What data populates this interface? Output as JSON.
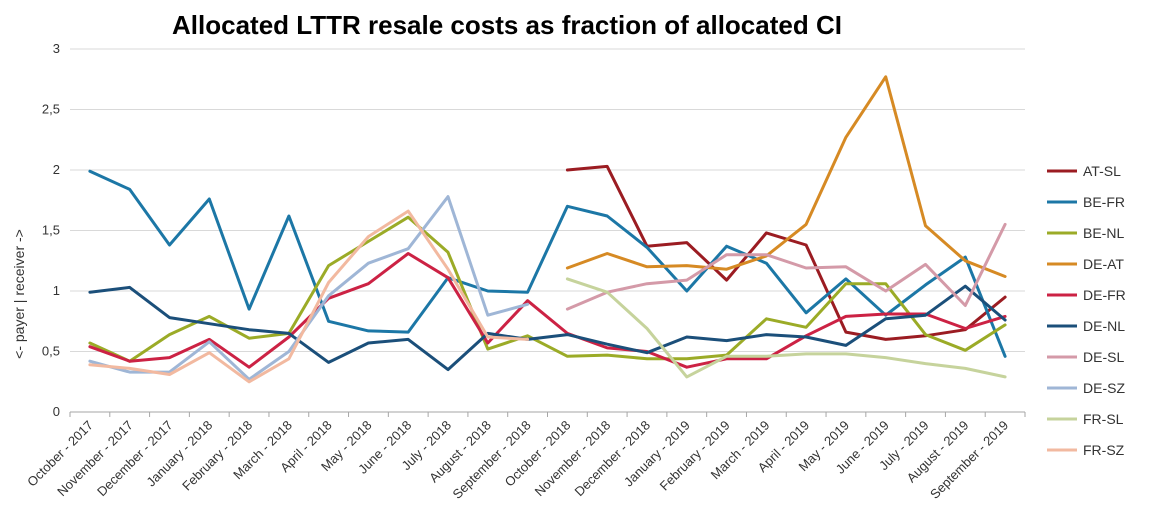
{
  "chart_data": {
    "type": "line",
    "title": "Allocated LTTR resale costs as fraction of allocated CI",
    "xlabel": "",
    "ylabel": "<- payer  |  receiver ->",
    "ylim": [
      0,
      3
    ],
    "yticks": [
      "0",
      "0,5",
      "1",
      "1,5",
      "2",
      "2,5",
      "3"
    ],
    "grid": true,
    "legend_position": "right",
    "categories": [
      "October - 2017",
      "November - 2017",
      "December - 2017",
      "January - 2018",
      "February - 2018",
      "March - 2018",
      "April - 2018",
      "May - 2018",
      "June - 2018",
      "July - 2018",
      "August - 2018",
      "September - 2018",
      "October - 2018",
      "November - 2018",
      "December - 2018",
      "January - 2019",
      "February - 2019",
      "March - 2019",
      "April - 2019",
      "May - 2019",
      "June - 2019",
      "July - 2019",
      "August - 2019",
      "September - 2019"
    ],
    "series": [
      {
        "name": "AT-SL",
        "color": "#9b1c22",
        "values": [
          null,
          null,
          null,
          null,
          null,
          null,
          null,
          null,
          null,
          null,
          null,
          null,
          2.0,
          2.03,
          1.37,
          1.4,
          1.09,
          1.48,
          1.38,
          0.66,
          0.6,
          0.63,
          0.68,
          0.95
        ]
      },
      {
        "name": "BE-FR",
        "color": "#1c77a6",
        "values": [
          1.99,
          1.84,
          1.38,
          1.76,
          0.85,
          1.62,
          0.75,
          0.67,
          0.66,
          1.11,
          1.0,
          0.99,
          1.7,
          1.62,
          1.36,
          1.0,
          1.37,
          1.23,
          0.82,
          1.1,
          0.8,
          1.05,
          1.28,
          0.46
        ]
      },
      {
        "name": "BE-NL",
        "color": "#9bab27",
        "values": [
          0.57,
          0.42,
          0.64,
          0.79,
          0.61,
          0.65,
          1.21,
          1.41,
          1.61,
          1.32,
          0.52,
          0.63,
          0.46,
          0.47,
          0.44,
          0.44,
          0.47,
          0.77,
          0.7,
          1.06,
          1.06,
          0.64,
          0.51,
          0.72
        ]
      },
      {
        "name": "DE-AT",
        "color": "#d68a24",
        "values": [
          null,
          null,
          null,
          null,
          null,
          null,
          null,
          null,
          null,
          null,
          null,
          null,
          1.19,
          1.31,
          1.2,
          1.21,
          1.18,
          1.29,
          1.55,
          2.27,
          2.77,
          1.54,
          1.25,
          1.12
        ]
      },
      {
        "name": "DE-FR",
        "color": "#cc2244",
        "values": [
          0.54,
          0.42,
          0.45,
          0.6,
          0.37,
          0.62,
          0.94,
          1.06,
          1.31,
          1.11,
          0.57,
          0.92,
          0.65,
          0.53,
          0.5,
          0.37,
          0.44,
          0.44,
          0.63,
          0.79,
          0.81,
          0.81,
          0.69,
          0.79
        ]
      },
      {
        "name": "DE-NL",
        "color": "#1b4f7a",
        "values": [
          0.99,
          1.03,
          0.78,
          0.73,
          0.68,
          0.65,
          0.41,
          0.57,
          0.6,
          0.35,
          0.65,
          0.6,
          0.64,
          0.56,
          0.49,
          0.62,
          0.59,
          0.64,
          0.62,
          0.55,
          0.77,
          0.8,
          1.04,
          0.76
        ]
      },
      {
        "name": "DE-SL",
        "color": "#d49aa8",
        "values": [
          null,
          null,
          null,
          null,
          null,
          null,
          null,
          null,
          null,
          null,
          null,
          null,
          0.85,
          0.99,
          1.06,
          1.09,
          1.3,
          1.3,
          1.19,
          1.2,
          1.0,
          1.22,
          0.88,
          1.55
        ]
      },
      {
        "name": "DE-SZ",
        "color": "#9fb6d6",
        "values": [
          0.42,
          0.33,
          0.33,
          0.58,
          0.27,
          0.5,
          0.96,
          1.23,
          1.35,
          1.78,
          0.8,
          0.89,
          null,
          null,
          null,
          null,
          null,
          null,
          null,
          null,
          null,
          null,
          null,
          null
        ]
      },
      {
        "name": "FR-SL",
        "color": "#c6d39c",
        "values": [
          null,
          null,
          null,
          null,
          null,
          null,
          null,
          null,
          null,
          null,
          null,
          null,
          1.1,
          0.99,
          0.69,
          0.29,
          0.46,
          0.46,
          0.48,
          0.48,
          0.45,
          0.4,
          0.36,
          0.29
        ]
      },
      {
        "name": "FR-SZ",
        "color": "#f2b9a0",
        "values": [
          0.39,
          0.36,
          0.31,
          0.49,
          0.25,
          0.44,
          1.07,
          1.45,
          1.66,
          1.18,
          0.62,
          0.6,
          null,
          null,
          null,
          null,
          null,
          null,
          null,
          null,
          null,
          null,
          null,
          null
        ]
      }
    ]
  }
}
